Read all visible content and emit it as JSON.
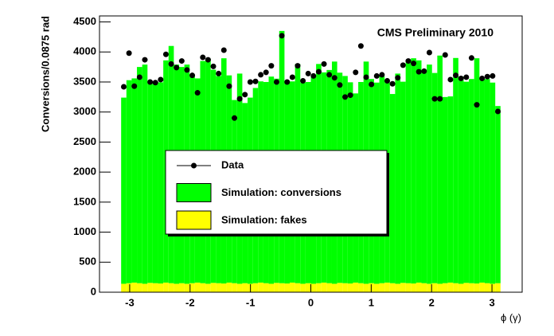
{
  "chart_data": {
    "type": "histogram",
    "annotation": "CMS Preliminary 2010",
    "xlabel": "ϕ (γ)",
    "ylabel": "Conversions/0.0875 rad",
    "bins": [
      -3.1416,
      -3.0543,
      -2.9671,
      -2.8798,
      -2.7925,
      -2.7053,
      -2.618,
      -2.5307,
      -2.4435,
      -2.3562,
      -2.2689,
      -2.1817,
      -2.0944,
      -2.0071,
      -1.9199,
      -1.8326,
      -1.7453,
      -1.6581,
      -1.5708,
      -1.4835,
      -1.3963,
      -1.309,
      -1.2217,
      -1.1345,
      -1.0472,
      -0.9599,
      -0.8727,
      -0.7854,
      -0.6981,
      -0.6109,
      -0.5236,
      -0.4363,
      -0.3491,
      -0.2618,
      -0.1745,
      -0.0873,
      0,
      0.0873,
      0.1745,
      0.2618,
      0.3491,
      0.4363,
      0.5236,
      0.6109,
      0.6981,
      0.7854,
      0.8727,
      0.9599,
      1.0472,
      1.1345,
      1.2217,
      1.309,
      1.3963,
      1.4835,
      1.5708,
      1.6581,
      1.7453,
      1.8326,
      1.9199,
      2.0071,
      2.0944,
      2.1817,
      2.2689,
      2.3562,
      2.4435,
      2.5307,
      2.618,
      2.7053,
      2.7925,
      2.8798,
      2.9671,
      3.0543,
      3.1416
    ],
    "series": [
      {
        "name": "Simulation: fakes",
        "color": "#ffff00",
        "values": [
          140,
          150,
          160,
          150,
          140,
          155,
          150,
          145,
          160,
          150,
          140,
          150,
          140,
          150,
          160,
          150,
          140,
          155,
          150,
          145,
          160,
          150,
          140,
          150,
          140,
          150,
          160,
          150,
          140,
          155,
          150,
          145,
          160,
          150,
          140,
          150,
          140,
          150,
          160,
          150,
          140,
          155,
          150,
          145,
          160,
          150,
          140,
          150,
          140,
          150,
          160,
          150,
          140,
          155,
          150,
          145,
          160,
          150,
          140,
          150,
          140,
          150,
          160,
          150,
          140,
          155,
          150,
          145,
          160,
          150,
          140,
          150
        ]
      },
      {
        "name": "Simulation: conversions",
        "color": "#00ff00",
        "values": [
          3100,
          3380,
          3400,
          3600,
          3650,
          3350,
          3350,
          3350,
          3700,
          3950,
          3650,
          3600,
          3650,
          3450,
          3400,
          3700,
          3750,
          3550,
          3450,
          3750,
          3450,
          3050,
          3500,
          3000,
          3100,
          3250,
          3350,
          3350,
          3450,
          3400,
          4200,
          3350,
          3350,
          3650,
          3350,
          3350,
          3450,
          3650,
          3500,
          3550,
          3700,
          3500,
          3450,
          3350,
          3150,
          3350,
          3700,
          3400,
          3350,
          3450,
          3350,
          3150,
          3500,
          3350,
          3700,
          3750,
          3700,
          3550,
          3650,
          3500,
          3800,
          3100,
          3100,
          3750,
          3450,
          3350,
          3400,
          3750,
          3400,
          3400,
          3350,
          2950
        ]
      },
      {
        "name": "Data",
        "color": "#000000",
        "values": [
          3420,
          3980,
          3430,
          3580,
          3870,
          3500,
          3490,
          3540,
          3960,
          3800,
          3740,
          3850,
          3700,
          3610,
          3320,
          3910,
          3870,
          3760,
          3640,
          4030,
          3430,
          2900,
          3220,
          3290,
          3500,
          3510,
          3620,
          3660,
          3770,
          3500,
          4270,
          3500,
          3580,
          3770,
          3520,
          3640,
          3600,
          3670,
          3800,
          3620,
          3570,
          3450,
          3250,
          3280,
          3660,
          4100,
          3580,
          3460,
          3600,
          3620,
          3520,
          3470,
          3570,
          3780,
          3850,
          3810,
          3670,
          3680,
          3990,
          3220,
          3220,
          3950,
          3540,
          3610,
          3560,
          3580,
          3900,
          3120,
          3560,
          3590,
          3600,
          3010
        ]
      }
    ],
    "xlim": [
      -3.5,
      3.5
    ],
    "ylim": [
      0,
      4600
    ],
    "xticks": [
      -3,
      -2,
      -1,
      0,
      1,
      2,
      3
    ],
    "yticks": [
      0,
      500,
      1000,
      1500,
      2000,
      2500,
      3000,
      3500,
      4000,
      4500
    ]
  }
}
